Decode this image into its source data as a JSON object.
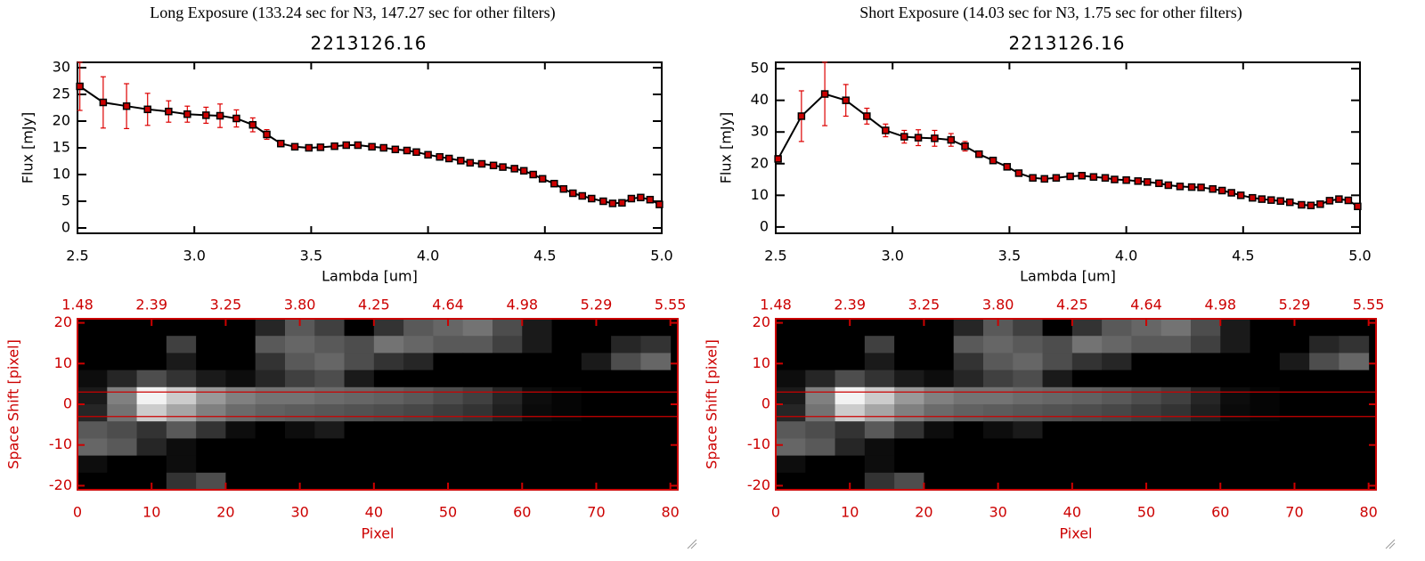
{
  "chart_data": [
    {
      "type": "line",
      "header": "Long Exposure (133.24 sec for N3, 147.27 sec for other filters)",
      "title": "2213126.16",
      "x_label": "Lambda [um]",
      "y_label": "Flux [mJy]",
      "color": "#000000",
      "marker_color": "#cc0000",
      "error_color": "#dd0000",
      "x": [
        2.51,
        2.61,
        2.71,
        2.8,
        2.89,
        2.97,
        3.05,
        3.11,
        3.18,
        3.25,
        3.31,
        3.37,
        3.43,
        3.49,
        3.54,
        3.6,
        3.65,
        3.7,
        3.76,
        3.81,
        3.86,
        3.91,
        3.95,
        4.0,
        4.05,
        4.09,
        4.14,
        4.18,
        4.23,
        4.28,
        4.32,
        4.37,
        4.41,
        4.45,
        4.49,
        4.54,
        4.58,
        4.62,
        4.66,
        4.7,
        4.75,
        4.79,
        4.83,
        4.87,
        4.91,
        4.95,
        4.99
      ],
      "values": [
        26.5,
        23.5,
        22.8,
        22.2,
        21.8,
        21.3,
        21.1,
        21.0,
        20.5,
        19.3,
        17.5,
        15.8,
        15.2,
        15.0,
        15.1,
        15.3,
        15.5,
        15.5,
        15.2,
        15.0,
        14.7,
        14.5,
        14.2,
        13.7,
        13.3,
        13.0,
        12.6,
        12.2,
        12.0,
        11.7,
        11.4,
        11.1,
        10.7,
        10.0,
        9.2,
        8.3,
        7.3,
        6.5,
        6.0,
        5.5,
        5.0,
        4.6,
        4.7,
        5.5,
        5.7,
        5.3,
        4.4
      ],
      "errors": [
        4.5,
        4.8,
        4.2,
        3.0,
        2.0,
        1.5,
        1.5,
        2.2,
        1.6,
        1.3,
        0.9,
        0.6,
        0.4,
        0.3,
        0.3,
        0.3,
        0.3,
        0.3,
        0.3,
        0.3,
        0.3,
        0.3,
        0.3,
        0.3,
        0.3,
        0.3,
        0.3,
        0.3,
        0.3,
        0.3,
        0.3,
        0.3,
        0.3,
        0.3,
        0.3,
        0.3,
        0.3,
        0.3,
        0.3,
        0.3,
        0.3,
        0.3,
        0.3,
        0.3,
        0.3,
        0.3,
        0.5
      ],
      "xlim": [
        2.5,
        5.0
      ],
      "ylim": [
        -1,
        31
      ],
      "xticks": [
        2.5,
        {
          "value": 3,
          "label": "3.0"
        },
        3.5,
        {
          "value": 4,
          "label": "4.0"
        },
        4.5,
        {
          "value": 5,
          "label": "5.0"
        }
      ],
      "yticks": [
        0,
        5,
        10,
        15,
        20,
        25,
        30
      ]
    },
    {
      "type": "heatmap",
      "x_label": "Pixel",
      "y_label": "Space Shift [pixel]",
      "axis_color": "#cc0000",
      "xlim": [
        0,
        81
      ],
      "ylim": [
        -21,
        21
      ],
      "hlines": [
        3,
        -3
      ],
      "xticks": [
        0,
        10,
        20,
        30,
        40,
        50,
        60,
        70,
        80
      ],
      "yticks": [
        -20,
        -10,
        0,
        10,
        20
      ],
      "x2ticks": [
        {
          "value": 0,
          "label": "1.48"
        },
        {
          "value": 10,
          "label": "2.39"
        },
        {
          "value": 20,
          "label": "3.25"
        },
        {
          "value": 30,
          "label": "3.80"
        },
        {
          "value": 40,
          "label": "4.25"
        },
        {
          "value": 50,
          "label": "4.64"
        },
        {
          "value": 60,
          "label": "4.98"
        },
        {
          "value": 70,
          "label": "5.29"
        },
        {
          "value": 80,
          "label": "5.55"
        }
      ],
      "z": [
        [
          0,
          0,
          0,
          0,
          0,
          0,
          0.15,
          0.35,
          0.25,
          0,
          0.2,
          0.35,
          0.4,
          0.45,
          0.3,
          0.1,
          0,
          0,
          0,
          0
        ],
        [
          0,
          0,
          0,
          0.25,
          0,
          0,
          0.35,
          0.4,
          0.35,
          0.3,
          0.45,
          0.4,
          0.35,
          0.35,
          0.25,
          0.1,
          0,
          0,
          0.15,
          0.2
        ],
        [
          0,
          0,
          0,
          0.1,
          0,
          0,
          0.2,
          0.35,
          0.4,
          0.3,
          0.2,
          0.15,
          0,
          0,
          0,
          0,
          0,
          0.1,
          0.3,
          0.4
        ],
        [
          0.05,
          0.15,
          0.3,
          0.2,
          0.1,
          0.05,
          0.15,
          0.25,
          0.3,
          0.1,
          0,
          0,
          0,
          0,
          0,
          0,
          0,
          0,
          0,
          0
        ],
        [
          0.1,
          0.5,
          0.95,
          0.8,
          0.6,
          0.5,
          0.45,
          0.45,
          0.42,
          0.4,
          0.38,
          0.35,
          0.3,
          0.25,
          0.15,
          0.05,
          0.02,
          0,
          0,
          0
        ],
        [
          0.15,
          0.45,
          0.8,
          0.65,
          0.5,
          0.42,
          0.38,
          0.36,
          0.34,
          0.32,
          0.3,
          0.28,
          0.24,
          0.2,
          0.12,
          0.04,
          0.02,
          0,
          0,
          0
        ],
        [
          0.35,
          0.3,
          0.2,
          0.35,
          0.2,
          0.05,
          0,
          0.05,
          0.1,
          0,
          0,
          0,
          0,
          0,
          0,
          0,
          0,
          0,
          0,
          0
        ],
        [
          0.4,
          0.35,
          0.15,
          0.05,
          0,
          0,
          0,
          0,
          0,
          0,
          0,
          0,
          0,
          0,
          0,
          0,
          0,
          0,
          0,
          0
        ],
        [
          0.05,
          0,
          0,
          0.05,
          0,
          0,
          0,
          0,
          0,
          0,
          0,
          0,
          0,
          0,
          0,
          0,
          0,
          0,
          0,
          0
        ],
        [
          0,
          0,
          0,
          0.2,
          0.3,
          0,
          0,
          0,
          0,
          0,
          0,
          0,
          0,
          0,
          0,
          0,
          0,
          0,
          0,
          0
        ]
      ]
    },
    {
      "type": "line",
      "header": "Short Exposure (14.03 sec for N3, 1.75 sec for other filters)",
      "title": "2213126.16",
      "x_label": "Lambda [um]",
      "y_label": "Flux [mJy]",
      "color": "#000000",
      "marker_color": "#cc0000",
      "error_color": "#dd0000",
      "x": [
        2.51,
        2.61,
        2.71,
        2.8,
        2.89,
        2.97,
        3.05,
        3.11,
        3.18,
        3.25,
        3.31,
        3.37,
        3.43,
        3.49,
        3.54,
        3.6,
        3.65,
        3.7,
        3.76,
        3.81,
        3.86,
        3.91,
        3.95,
        4.0,
        4.05,
        4.09,
        4.14,
        4.18,
        4.23,
        4.28,
        4.32,
        4.37,
        4.41,
        4.45,
        4.49,
        4.54,
        4.58,
        4.62,
        4.66,
        4.7,
        4.75,
        4.79,
        4.83,
        4.87,
        4.91,
        4.95,
        4.99
      ],
      "values": [
        21.5,
        35,
        42,
        40,
        35,
        30.5,
        28.5,
        28.2,
        28,
        27.5,
        25.5,
        23,
        21,
        19,
        17,
        15.5,
        15.2,
        15.5,
        16,
        16.2,
        15.8,
        15.5,
        15.0,
        14.8,
        14.5,
        14.2,
        13.8,
        13.2,
        12.8,
        12.6,
        12.5,
        12.0,
        11.5,
        10.8,
        10.0,
        9.2,
        8.8,
        8.5,
        8.2,
        7.8,
        7.0,
        6.8,
        7.2,
        8.3,
        8.8,
        8.4,
        6.5
      ],
      "errors": [
        1.0,
        8.0,
        10.0,
        5.0,
        2.5,
        2.0,
        2.0,
        2.5,
        2.5,
        2.0,
        1.5,
        0.8,
        0.6,
        0.5,
        0.5,
        0.5,
        0.5,
        0.5,
        0.5,
        0.5,
        0.5,
        0.5,
        0.5,
        0.5,
        0.5,
        0.5,
        0.5,
        0.5,
        0.5,
        0.5,
        0.5,
        0.5,
        0.5,
        0.5,
        0.5,
        0.5,
        0.5,
        0.5,
        0.5,
        0.5,
        0.5,
        0.5,
        0.5,
        0.5,
        0.5,
        0.5,
        0.8
      ],
      "xlim": [
        2.5,
        5.0
      ],
      "ylim": [
        -2,
        52
      ],
      "xticks": [
        2.5,
        {
          "value": 3,
          "label": "3.0"
        },
        3.5,
        {
          "value": 4,
          "label": "4.0"
        },
        4.5,
        {
          "value": 5,
          "label": "5.0"
        }
      ],
      "yticks": [
        0,
        10,
        20,
        30,
        40,
        50
      ]
    },
    {
      "type": "heatmap",
      "x_label": "Pixel",
      "y_label": "Space Shift [pixel]",
      "axis_color": "#cc0000",
      "xlim": [
        0,
        81
      ],
      "ylim": [
        -21,
        21
      ],
      "hlines": [
        3,
        -3
      ],
      "xticks": [
        0,
        10,
        20,
        30,
        40,
        50,
        60,
        70,
        80
      ],
      "yticks": [
        -20,
        -10,
        0,
        10,
        20
      ],
      "x2ticks": [
        {
          "value": 0,
          "label": "1.48"
        },
        {
          "value": 10,
          "label": "2.39"
        },
        {
          "value": 20,
          "label": "3.25"
        },
        {
          "value": 30,
          "label": "3.80"
        },
        {
          "value": 40,
          "label": "4.25"
        },
        {
          "value": 50,
          "label": "4.64"
        },
        {
          "value": 60,
          "label": "4.98"
        },
        {
          "value": 70,
          "label": "5.29"
        },
        {
          "value": 80,
          "label": "5.55"
        }
      ],
      "z": [
        [
          0,
          0,
          0,
          0,
          0,
          0,
          0.15,
          0.35,
          0.25,
          0,
          0.2,
          0.35,
          0.4,
          0.45,
          0.3,
          0.1,
          0,
          0,
          0,
          0
        ],
        [
          0,
          0,
          0,
          0.25,
          0,
          0,
          0.35,
          0.4,
          0.35,
          0.3,
          0.45,
          0.4,
          0.35,
          0.35,
          0.25,
          0.1,
          0,
          0,
          0.15,
          0.2
        ],
        [
          0,
          0,
          0,
          0.1,
          0,
          0,
          0.2,
          0.35,
          0.4,
          0.3,
          0.2,
          0.15,
          0,
          0,
          0,
          0,
          0,
          0.1,
          0.3,
          0.4
        ],
        [
          0.05,
          0.15,
          0.3,
          0.2,
          0.1,
          0.05,
          0.15,
          0.25,
          0.3,
          0.1,
          0,
          0,
          0,
          0,
          0,
          0,
          0,
          0,
          0,
          0
        ],
        [
          0.1,
          0.5,
          0.95,
          0.8,
          0.6,
          0.5,
          0.45,
          0.45,
          0.42,
          0.4,
          0.38,
          0.35,
          0.3,
          0.25,
          0.15,
          0.05,
          0.02,
          0,
          0,
          0
        ],
        [
          0.15,
          0.45,
          0.8,
          0.65,
          0.5,
          0.42,
          0.38,
          0.36,
          0.34,
          0.32,
          0.3,
          0.28,
          0.24,
          0.2,
          0.12,
          0.04,
          0.02,
          0,
          0,
          0
        ],
        [
          0.35,
          0.3,
          0.2,
          0.35,
          0.2,
          0.05,
          0,
          0.05,
          0.1,
          0,
          0,
          0,
          0,
          0,
          0,
          0,
          0,
          0,
          0,
          0
        ],
        [
          0.4,
          0.35,
          0.15,
          0.05,
          0,
          0,
          0,
          0,
          0,
          0,
          0,
          0,
          0,
          0,
          0,
          0,
          0,
          0,
          0,
          0
        ],
        [
          0.05,
          0,
          0,
          0.05,
          0,
          0,
          0,
          0,
          0,
          0,
          0,
          0,
          0,
          0,
          0,
          0,
          0,
          0,
          0,
          0
        ],
        [
          0,
          0,
          0,
          0.2,
          0.3,
          0,
          0,
          0,
          0,
          0,
          0,
          0,
          0,
          0,
          0,
          0,
          0,
          0,
          0,
          0
        ]
      ]
    }
  ]
}
